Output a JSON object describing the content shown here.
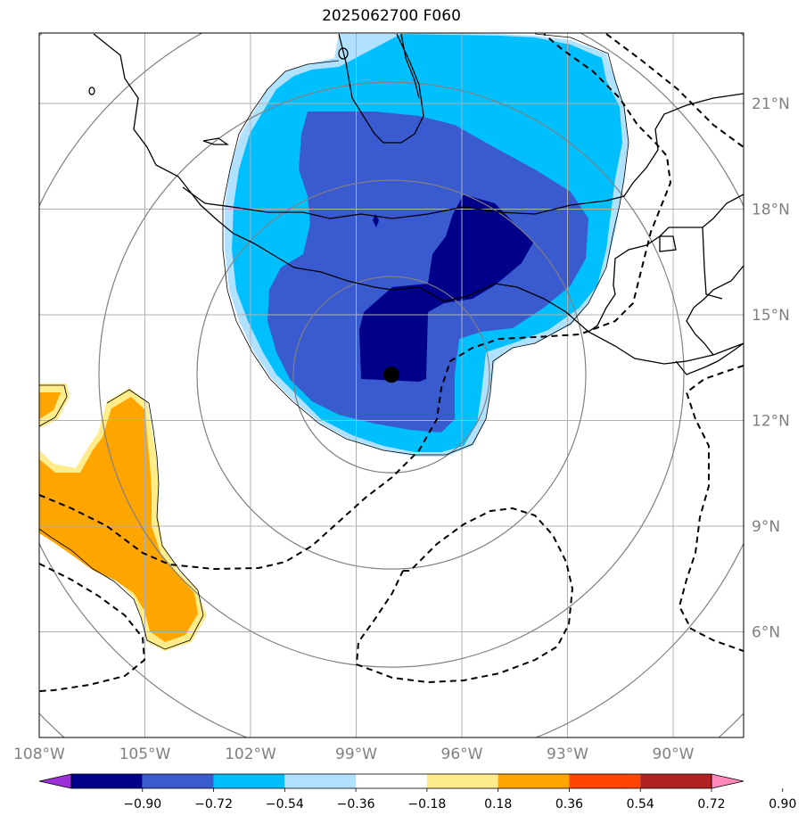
{
  "title": "2025062700 F060",
  "map": {
    "lon_range": [
      -108,
      -88
    ],
    "lat_range": [
      3,
      23
    ],
    "lon_ticks": [
      {
        "lon": -108,
        "label": "108°W"
      },
      {
        "lon": -105,
        "label": "105°W"
      },
      {
        "lon": -102,
        "label": "102°W"
      },
      {
        "lon": -99,
        "label": "99°W"
      },
      {
        "lon": -96,
        "label": "96°W"
      },
      {
        "lon": -93,
        "label": "93°W"
      },
      {
        "lon": -90,
        "label": "90°W"
      }
    ],
    "lat_ticks": [
      {
        "lat": 6,
        "label": "6°N"
      },
      {
        "lat": 9,
        "label": "9°N"
      },
      {
        "lat": 12,
        "label": "12°N"
      },
      {
        "lat": 15,
        "label": "15°N"
      },
      {
        "lat": 18,
        "label": "18°N"
      },
      {
        "lat": 21,
        "label": "21°N"
      }
    ],
    "center_marker": {
      "lon": -98.0,
      "lat": 13.3
    },
    "range_ring_color": "#808080",
    "grid_color": "#b0b0b0"
  },
  "colorbar": {
    "ticks": [
      "−0.90",
      "−0.72",
      "−0.54",
      "−0.36",
      "−0.18",
      "0.18",
      "0.36",
      "0.54",
      "0.72",
      "0.90"
    ],
    "under_color": "#9b30d9",
    "over_color": "#ff88bb",
    "colors": [
      "#00008b",
      "#3a5bd0",
      "#00bfff",
      "#b0e2ff",
      "#ffffff",
      "#ffec8b",
      "#ffa500",
      "#ff4500",
      "#b22222"
    ]
  },
  "shading": {
    "neg_outer": "#b0e2ff",
    "neg_1": "#00bfff",
    "neg_2": "#3a5bd0",
    "neg_3": "#00008b",
    "pos_outer": "#ffec8b",
    "pos_1": "#ffa500"
  }
}
